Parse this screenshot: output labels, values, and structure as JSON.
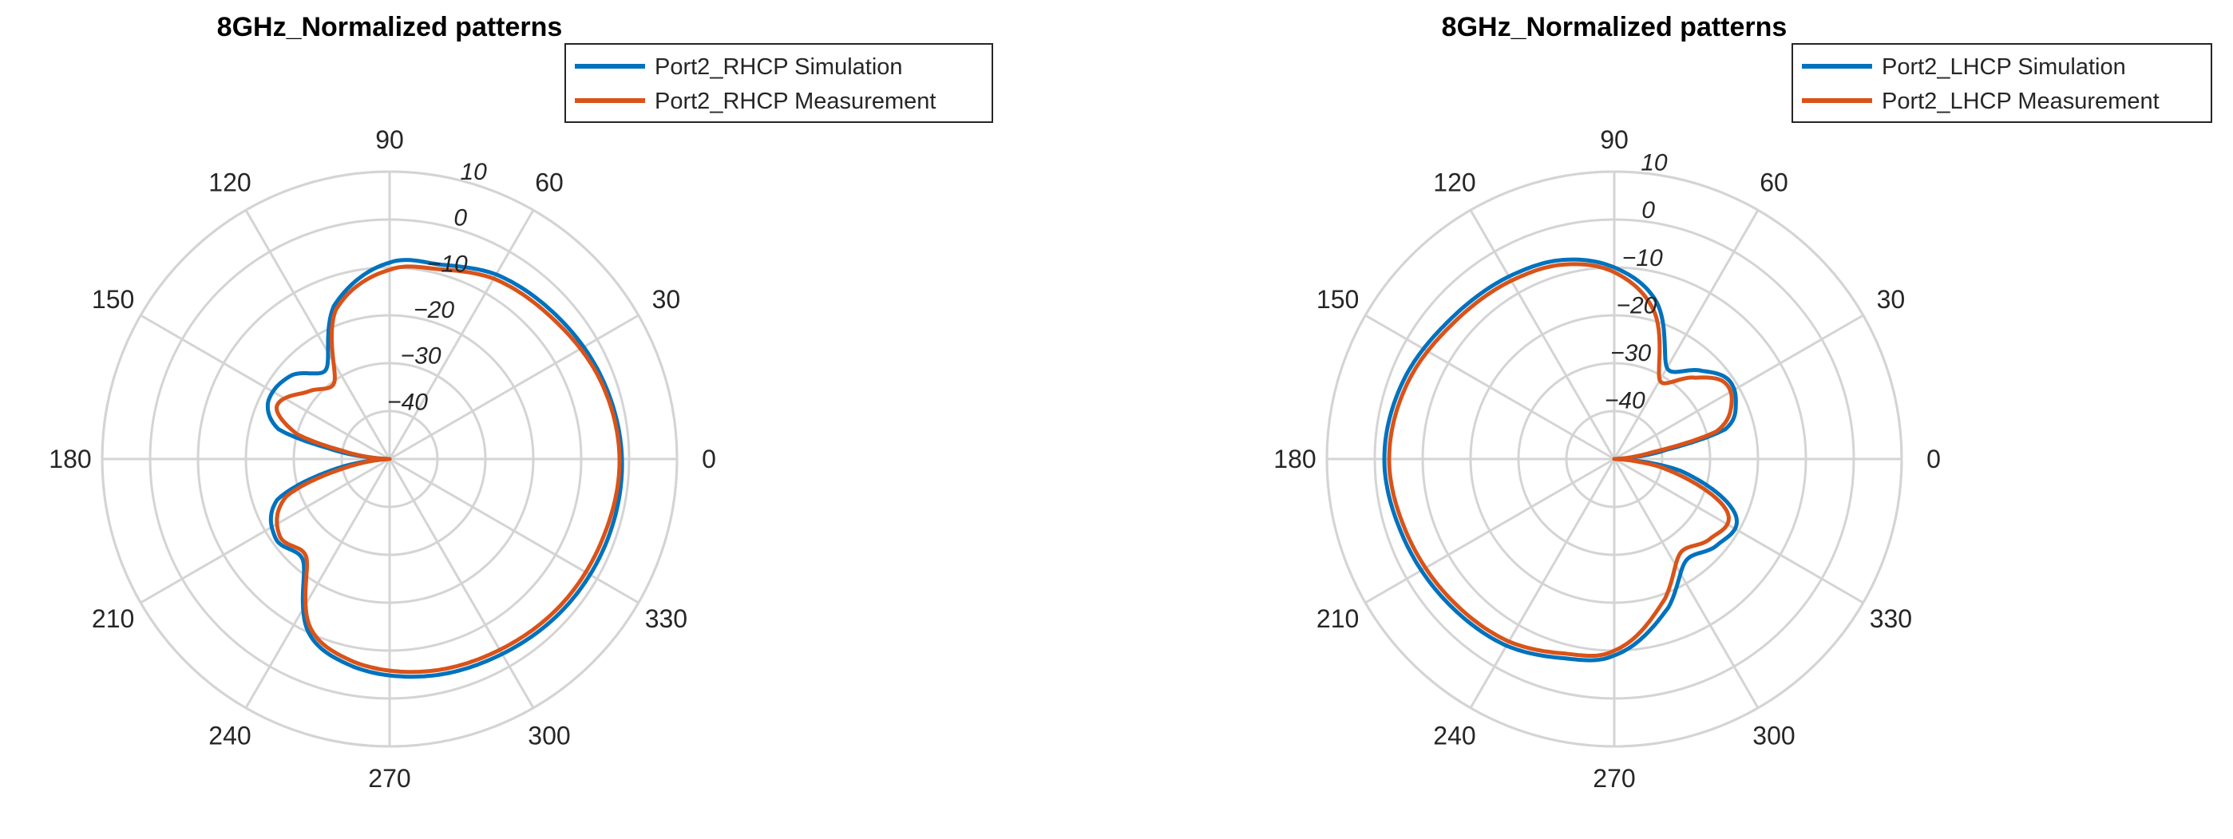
{
  "chart_data": [
    {
      "type": "line",
      "subtype": "polar",
      "title": "8GHz_Normalized patterns",
      "theta_ticks": [
        0,
        30,
        60,
        90,
        120,
        150,
        180,
        210,
        240,
        270,
        300,
        330
      ],
      "r_ticks": [
        -40,
        -30,
        -20,
        -10,
        0,
        10
      ],
      "rlim": [
        -50,
        10
      ],
      "grid": true,
      "legend_position": "top-right",
      "series": [
        {
          "name": "Port2_RHCP Simulation",
          "color": "#0072BD",
          "theta": [
            0,
            20,
            40,
            60,
            75,
            90,
            110,
            125,
            140,
            155,
            165,
            170,
            180,
            190,
            200,
            215,
            230,
            245,
            260,
            280,
            300,
            320,
            340
          ],
          "r": [
            -1.5,
            -2.5,
            -4,
            -5.5,
            -8,
            -9,
            -16,
            -27,
            -23,
            -22,
            -26,
            -37,
            -50,
            -39,
            -25,
            -21,
            -22,
            -10,
            -6,
            -4,
            -3,
            -2,
            -1.5
          ]
        },
        {
          "name": "Port2_RHCP Measurement",
          "color": "#D95319",
          "theta": [
            0,
            20,
            40,
            60,
            75,
            90,
            110,
            125,
            140,
            155,
            165,
            170,
            180,
            190,
            200,
            215,
            230,
            245,
            260,
            280,
            300,
            320,
            340
          ],
          "r": [
            -2,
            -3,
            -5,
            -6.5,
            -9,
            -10.5,
            -17,
            -30,
            -28,
            -24,
            -30,
            -40,
            -50,
            -42,
            -27,
            -22,
            -23,
            -11,
            -7,
            -5,
            -4,
            -3,
            -2.5
          ]
        }
      ]
    },
    {
      "type": "line",
      "subtype": "polar",
      "title": "8GHz_Normalized patterns",
      "theta_ticks": [
        0,
        30,
        60,
        90,
        120,
        150,
        180,
        210,
        240,
        270,
        300,
        330
      ],
      "r_ticks": [
        -40,
        -30,
        -20,
        -10,
        0,
        10
      ],
      "rlim": [
        -50,
        10
      ],
      "grid": true,
      "legend_position": "top-right",
      "series": [
        {
          "name": "Port2_LHCP Simulation",
          "color": "#0072BD",
          "theta": [
            0,
            10,
            15,
            25,
            35,
            45,
            60,
            75,
            90,
            105,
            120,
            140,
            160,
            180,
            200,
            220,
            240,
            255,
            270,
            290,
            305,
            320,
            335,
            350,
            360
          ],
          "r": [
            -50,
            -39,
            -26,
            -22,
            -21,
            -24,
            -28,
            -16,
            -10,
            -7,
            -6,
            -5,
            -3,
            -2,
            -3,
            -4,
            -5,
            -7,
            -9,
            -17,
            -24,
            -22,
            -22,
            -36,
            -50
          ]
        },
        {
          "name": "Port2_LHCP Measurement",
          "color": "#D95319",
          "theta": [
            0,
            10,
            15,
            25,
            35,
            45,
            60,
            75,
            90,
            105,
            120,
            140,
            160,
            180,
            200,
            220,
            240,
            255,
            270,
            290,
            305,
            320,
            335,
            350,
            360
          ],
          "r": [
            -50,
            -42,
            -28,
            -23,
            -22,
            -26,
            -31,
            -18,
            -11,
            -8,
            -7,
            -6,
            -4,
            -3,
            -4,
            -5,
            -6,
            -8,
            -10,
            -19,
            -26,
            -24,
            -24,
            -40,
            -50
          ]
        }
      ]
    }
  ]
}
